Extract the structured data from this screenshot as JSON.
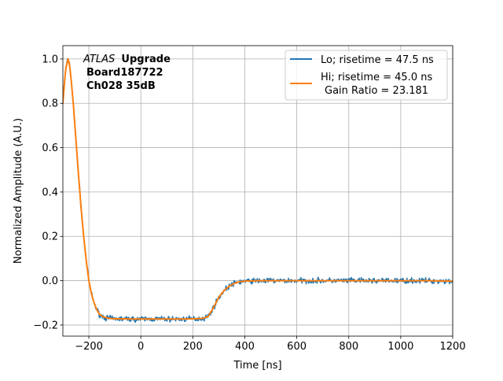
{
  "chart_data": {
    "type": "line",
    "title": "",
    "xlabel": "Time [ns]",
    "ylabel": "Normalized Amplitude (A.U.)",
    "xlim": [
      -300,
      1200
    ],
    "ylim": [
      -0.25,
      1.06
    ],
    "xticks": [
      -200,
      0,
      200,
      400,
      600,
      800,
      1000,
      1200
    ],
    "xtick_labels": [
      "−200",
      "0",
      "200",
      "400",
      "600",
      "800",
      "1000",
      "1200"
    ],
    "yticks": [
      -0.2,
      0.0,
      0.2,
      0.4,
      0.6,
      0.8,
      1.0
    ],
    "ytick_labels": [
      "−0.2",
      "0.0",
      "0.2",
      "0.4",
      "0.6",
      "0.8",
      "1.0"
    ],
    "grid": true,
    "legend_position": "top-right",
    "annotation": {
      "italic": "ATLAS",
      "bold": "Upgrade",
      "line2": "Board187722",
      "line3": "Ch028 35dB"
    },
    "series": [
      {
        "name": "Lo; risetime = 47.5 ns",
        "color": "#1f77b4",
        "noisy": true,
        "x": [
          -300,
          -290,
          -280,
          -275,
          -270,
          -260,
          -250,
          -240,
          -230,
          -220,
          -210,
          -200,
          -190,
          -180,
          -170,
          -160,
          -150,
          -140,
          -130,
          -120,
          -110,
          -100,
          -80,
          -60,
          -40,
          -20,
          0,
          50,
          100,
          150,
          200,
          240,
          260,
          280,
          300,
          320,
          340,
          360,
          380,
          400,
          450,
          500,
          600,
          700,
          800,
          900,
          1000,
          1100,
          1200
        ],
        "y": [
          0.8,
          0.95,
          1.0,
          0.98,
          0.93,
          0.8,
          0.64,
          0.48,
          0.33,
          0.2,
          0.09,
          0.0,
          -0.06,
          -0.1,
          -0.13,
          -0.15,
          -0.16,
          -0.165,
          -0.168,
          -0.17,
          -0.171,
          -0.172,
          -0.172,
          -0.172,
          -0.173,
          -0.173,
          -0.173,
          -0.173,
          -0.173,
          -0.173,
          -0.172,
          -0.17,
          -0.16,
          -0.12,
          -0.075,
          -0.045,
          -0.025,
          -0.012,
          -0.005,
          -0.002,
          0.0,
          0.0,
          0.0,
          0.0,
          0.0,
          0.0,
          0.0,
          0.0,
          -0.002
        ]
      },
      {
        "name": "Hi; risetime = 45.0 ns",
        "name_line2": "Gain Ratio = 23.181",
        "color": "#ff7f0e",
        "noisy": false,
        "x": [
          -300,
          -290,
          -280,
          -275,
          -270,
          -260,
          -250,
          -240,
          -230,
          -220,
          -210,
          -200,
          -190,
          -180,
          -170,
          -160,
          -150,
          -140,
          -130,
          -120,
          -110,
          -100,
          -80,
          -60,
          -40,
          -20,
          0,
          50,
          100,
          150,
          200,
          240,
          260,
          280,
          300,
          320,
          340,
          360,
          380,
          400,
          450,
          500,
          600,
          700,
          800,
          900,
          1000,
          1100,
          1200
        ],
        "y": [
          0.8,
          0.95,
          1.0,
          0.98,
          0.93,
          0.8,
          0.64,
          0.48,
          0.33,
          0.2,
          0.09,
          0.0,
          -0.06,
          -0.1,
          -0.13,
          -0.15,
          -0.16,
          -0.165,
          -0.168,
          -0.17,
          -0.171,
          -0.172,
          -0.172,
          -0.172,
          -0.173,
          -0.173,
          -0.173,
          -0.173,
          -0.173,
          -0.173,
          -0.172,
          -0.17,
          -0.16,
          -0.12,
          -0.075,
          -0.045,
          -0.025,
          -0.012,
          -0.005,
          -0.002,
          0.0,
          0.0,
          0.0,
          0.0,
          0.0,
          0.0,
          0.0,
          0.0,
          -0.002
        ]
      }
    ]
  }
}
